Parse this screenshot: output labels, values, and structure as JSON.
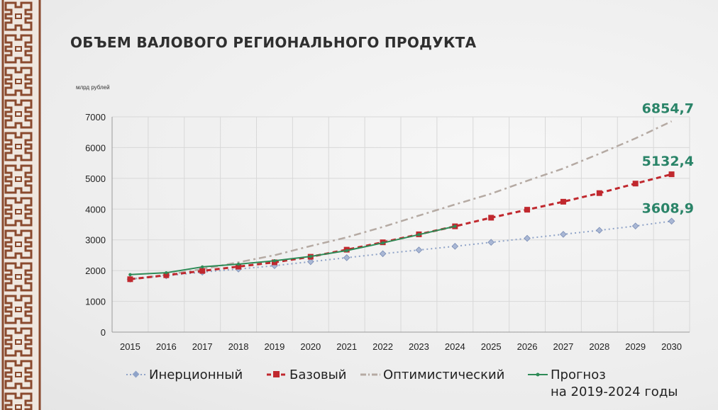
{
  "page": {
    "title": "ОБЪЕМ ВАЛОВОГО РЕГИОНАЛЬНОГО ПРОДУКТА",
    "unit": "млрд рублей"
  },
  "colors": {
    "inertial": "#8fa3c8",
    "base": "#c0282e",
    "optimistic": "#b5aaa3",
    "forecast": "#2e8b57",
    "end_label": "#2a8468"
  },
  "chart_data": {
    "type": "line",
    "title": "ОБЪЕМ ВАЛОВОГО РЕГИОНАЛЬНОГО ПРОДУКТА",
    "ylabel": "млрд рублей",
    "ylim": [
      0,
      7000
    ],
    "yticks": [
      "0",
      "1000",
      "2000",
      "3000",
      "4000",
      "5000",
      "6000",
      "7000"
    ],
    "grid": true,
    "legend_position": "bottom",
    "categories": [
      "2015",
      "2016",
      "2017",
      "2018",
      "2019",
      "2020",
      "2021",
      "2022",
      "2023",
      "2024",
      "2025",
      "2026",
      "2027",
      "2028",
      "2029",
      "2030"
    ],
    "series": [
      {
        "name": "Инерционный",
        "values": [
          1720,
          1830,
          1950,
          2050,
          2160,
          2290,
          2420,
          2550,
          2670,
          2790,
          2920,
          3050,
          3180,
          3310,
          3450,
          3608.9
        ]
      },
      {
        "name": "Базовый",
        "values": [
          1720,
          1850,
          1990,
          2130,
          2270,
          2450,
          2680,
          2920,
          3180,
          3440,
          3720,
          3980,
          4240,
          4520,
          4830,
          5132.4
        ]
      },
      {
        "name": "Оптимистический",
        "values": [
          1720,
          1860,
          2050,
          2270,
          2500,
          2800,
          3080,
          3420,
          3790,
          4150,
          4500,
          4920,
          5320,
          5800,
          6300,
          6854.7
        ]
      },
      {
        "name": "Прогноз\nна 2019-2024 годы",
        "values": [
          1870,
          1930,
          2120,
          2210,
          2320,
          2460,
          2650,
          2900,
          3170,
          3440,
          null,
          null,
          null,
          null,
          null,
          null
        ]
      }
    ],
    "annotations": [
      "6854,7",
      "5132,4",
      "3608,9"
    ]
  },
  "legend": [
    {
      "label": "Инерционный"
    },
    {
      "label": "Базовый"
    },
    {
      "label": "Оптимистический"
    },
    {
      "label_line1": "Прогноз",
      "label_line2": "на 2019-2024 годы"
    }
  ]
}
